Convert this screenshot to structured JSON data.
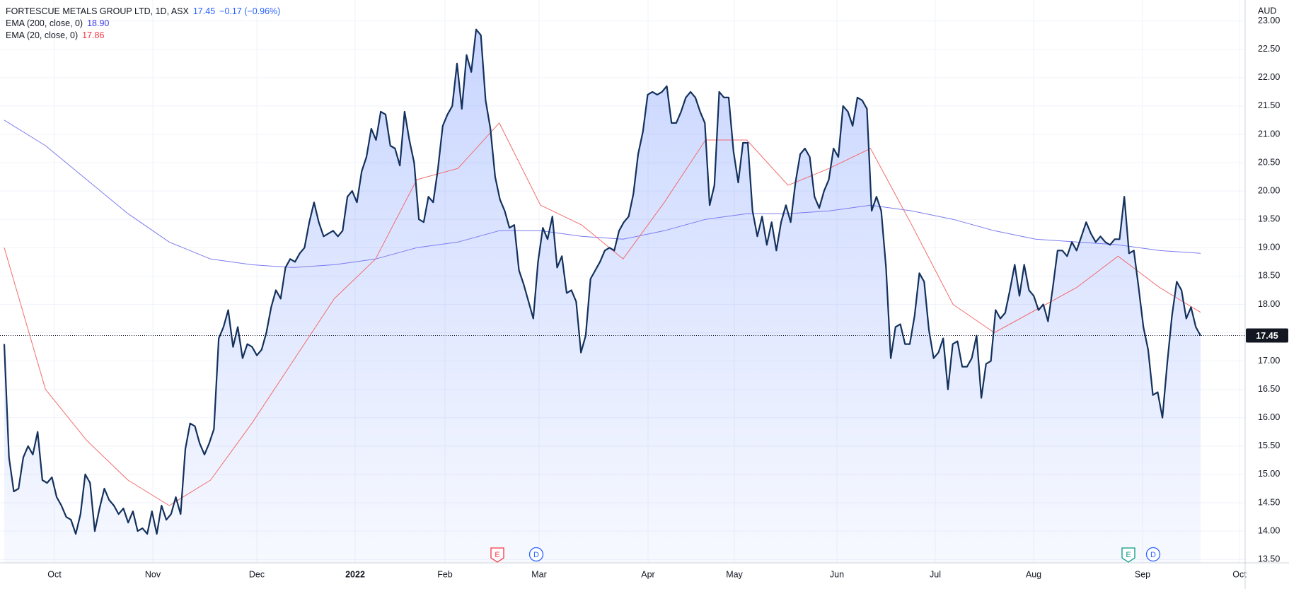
{
  "chart_data": {
    "type": "line",
    "header": {
      "symbol": "FORTESCUE METALS GROUP LTD, 1D, ASX",
      "price": "17.45",
      "change": "−0.17 (−0.96%)",
      "ema200_label": "EMA (200, close, 0)",
      "ema200_value": "18.90",
      "ema20_label": "EMA (20, close, 0)",
      "ema20_value": "17.86"
    },
    "currency": "AUD",
    "xtick_labels": [
      "Oct",
      "Nov",
      "Dec",
      "2022",
      "Feb",
      "Mar",
      "Apr",
      "May",
      "Jun",
      "Jul",
      "Aug",
      "Sep",
      "Oct"
    ],
    "events": [
      {
        "label": "E",
        "color": "#f23645"
      },
      {
        "label": "D",
        "color": "#2962ff"
      },
      {
        "label": "E",
        "color": "#089981"
      },
      {
        "label": "D",
        "color": "#2962ff"
      }
    ],
    "ylim": [
      13.44,
      23.37
    ],
    "yticks": [
      {
        "value": 13.5,
        "label": "13.50"
      },
      {
        "value": 14,
        "label": "14.00"
      },
      {
        "value": 14.5,
        "label": "14.50"
      },
      {
        "value": 15,
        "label": "15.00"
      },
      {
        "value": 15.5,
        "label": "15.50"
      },
      {
        "value": 16,
        "label": "16.00"
      },
      {
        "value": 16.5,
        "label": "16.50"
      },
      {
        "value": 17,
        "label": "17.00"
      },
      {
        "value": 17.5,
        "label": "17.50"
      },
      {
        "value": 18,
        "label": "18.00"
      },
      {
        "value": 18.5,
        "label": "18.50"
      },
      {
        "value": 19,
        "label": "19.00"
      },
      {
        "value": 19.5,
        "label": "19.50"
      },
      {
        "value": 20,
        "label": "20.00"
      },
      {
        "value": 20.5,
        "label": "20.50"
      },
      {
        "value": 21,
        "label": "21.00"
      },
      {
        "value": 21.5,
        "label": "21.50"
      },
      {
        "value": 22,
        "label": "22.00"
      },
      {
        "value": 22.5,
        "label": "22.50"
      },
      {
        "value": 23,
        "label": "23.00"
      }
    ],
    "grid": true,
    "series": [
      {
        "name": "FORTESCUE METALS GROUP LTD",
        "color": "#13315c",
        "fill": true,
        "values": [
          17.3,
          15.3,
          14.7,
          14.75,
          15.3,
          15.5,
          15.35,
          15.75,
          14.9,
          14.85,
          14.95,
          14.6,
          14.45,
          14.25,
          14.2,
          13.95,
          14.3,
          15.0,
          14.85,
          14.0,
          14.4,
          14.75,
          14.55,
          14.45,
          14.3,
          14.4,
          14.15,
          14.35,
          14.0,
          14.05,
          13.95,
          14.35,
          13.95,
          14.45,
          14.2,
          14.3,
          14.6,
          14.3,
          15.45,
          15.9,
          15.85,
          15.55,
          15.35,
          15.55,
          15.8,
          17.4,
          17.6,
          17.9,
          17.25,
          17.6,
          17.05,
          17.3,
          17.25,
          17.1,
          17.2,
          17.5,
          17.95,
          18.25,
          18.1,
          18.65,
          18.8,
          18.75,
          18.9,
          19.0,
          19.45,
          19.8,
          19.45,
          19.2,
          19.25,
          19.3,
          19.2,
          19.3,
          19.9,
          20.0,
          19.8,
          20.35,
          20.6,
          21.1,
          20.9,
          21.4,
          21.35,
          20.8,
          20.75,
          20.45,
          21.4,
          20.9,
          20.5,
          19.5,
          19.45,
          19.9,
          19.8,
          20.4,
          21.15,
          21.35,
          21.5,
          22.25,
          21.45,
          22.4,
          22.1,
          22.85,
          22.75,
          21.6,
          21.1,
          20.25,
          19.85,
          19.65,
          19.35,
          19.4,
          18.6,
          18.35,
          18.05,
          17.75,
          18.75,
          19.35,
          19.15,
          19.55,
          18.65,
          18.85,
          18.2,
          18.25,
          18.05,
          17.15,
          17.45,
          18.45,
          18.6,
          18.75,
          18.95,
          19.0,
          18.95,
          19.3,
          19.45,
          19.55,
          19.95,
          20.65,
          21.05,
          21.7,
          21.75,
          21.7,
          21.75,
          21.85,
          21.2,
          21.2,
          21.4,
          21.65,
          21.75,
          21.65,
          21.4,
          21.2,
          19.75,
          20.1,
          21.75,
          21.65,
          21.65,
          20.7,
          20.15,
          20.85,
          20.85,
          19.65,
          19.2,
          19.55,
          19.05,
          19.45,
          18.95,
          19.45,
          19.75,
          19.45,
          20.15,
          20.65,
          20.75,
          20.6,
          19.9,
          19.7,
          20.0,
          20.2,
          20.75,
          20.6,
          21.5,
          21.4,
          21.15,
          21.65,
          21.6,
          21.45,
          19.65,
          19.9,
          19.65,
          18.65,
          17.05,
          17.6,
          17.65,
          17.3,
          17.3,
          17.8,
          18.55,
          18.4,
          17.55,
          17.05,
          17.15,
          17.4,
          16.5,
          17.3,
          17.35,
          16.9,
          16.9,
          17.05,
          17.45,
          16.35,
          16.95,
          17.0,
          17.9,
          17.75,
          17.85,
          18.25,
          18.7,
          18.15,
          18.7,
          18.25,
          18.15,
          17.9,
          18.0,
          17.7,
          18.3,
          18.95,
          18.95,
          18.85,
          19.1,
          18.95,
          19.2,
          19.45,
          19.25,
          19.1,
          19.2,
          19.1,
          19.05,
          19.15,
          19.15,
          19.9,
          18.9,
          18.95,
          18.3,
          17.6,
          17.2,
          16.4,
          16.45,
          16.0,
          16.95,
          17.8,
          18.4,
          18.25,
          17.75,
          17.95,
          17.6,
          17.45
        ]
      },
      {
        "name": "EMA (200, close, 0)",
        "color": "#7b7bf0",
        "values": [
          21.25,
          20.8,
          20.2,
          19.6,
          19.1,
          18.8,
          18.7,
          18.65,
          18.7,
          18.8,
          19.0,
          19.1,
          19.3,
          19.3,
          19.2,
          19.15,
          19.3,
          19.5,
          19.6,
          19.6,
          19.65,
          19.75,
          19.65,
          19.5,
          19.3,
          19.15,
          19.1,
          19.05,
          18.95,
          18.9
        ]
      },
      {
        "name": "EMA (20, close, 0)",
        "color": "#f26c6c",
        "values": [
          19.0,
          16.5,
          15.6,
          14.9,
          14.45,
          14.9,
          15.9,
          17.0,
          18.1,
          18.8,
          20.2,
          20.4,
          21.2,
          19.75,
          19.4,
          18.8,
          19.8,
          20.9,
          20.9,
          20.1,
          20.4,
          20.75,
          19.4,
          18.0,
          17.5,
          17.9,
          18.3,
          18.85,
          18.3,
          17.86
        ]
      }
    ]
  }
}
